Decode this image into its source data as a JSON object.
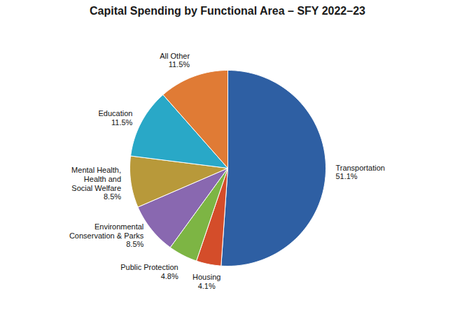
{
  "chart_data": {
    "type": "pie",
    "title": "Capital Spending by Functional Area – SFY 2022–23",
    "categories": [
      "Transportation",
      "Housing",
      "Public Protection",
      "Environmental\nConservation & Parks",
      "Mental Health,\nHealth and\nSocial Welfare",
      "Education",
      "All Other"
    ],
    "values": [
      51.1,
      4.1,
      4.8,
      8.5,
      8.5,
      11.5,
      11.5
    ],
    "value_labels": [
      "51.1%",
      "4.1%",
      "4.8%",
      "8.5%",
      "8.5%",
      "11.5%",
      "11.5%"
    ],
    "colors": [
      "#2e5fa3",
      "#d44d2a",
      "#7db544",
      "#8968b0",
      "#b8993a",
      "#29a8c7",
      "#e07b35"
    ],
    "data_labels": true
  }
}
